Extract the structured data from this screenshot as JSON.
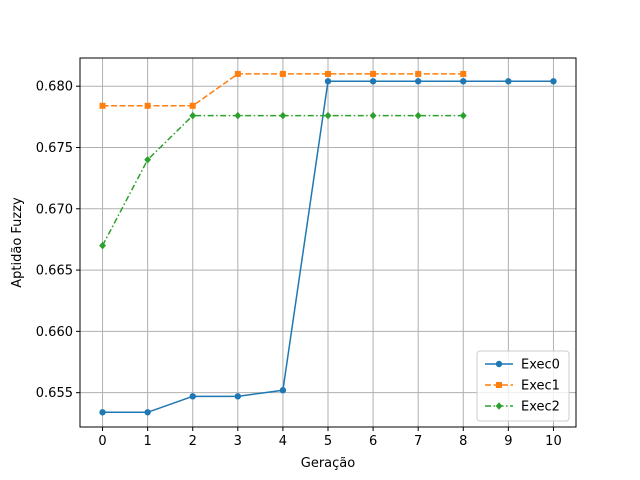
{
  "chart_data": {
    "type": "line",
    "title": "",
    "xlabel": "Geração",
    "ylabel": "Aptidão Fuzzy",
    "xlim": [
      -0.5,
      10.5
    ],
    "ylim": [
      0.6522,
      0.6823
    ],
    "x_ticks": [
      0,
      1,
      2,
      3,
      4,
      5,
      6,
      7,
      8,
      9,
      10
    ],
    "y_ticks": [
      0.655,
      0.66,
      0.665,
      0.67,
      0.675,
      0.68
    ],
    "y_tick_labels": [
      "0.655",
      "0.660",
      "0.665",
      "0.670",
      "0.675",
      "0.680"
    ],
    "grid": true,
    "legend_position": "lower-right",
    "series": [
      {
        "name": "Exec0",
        "color": "#1f77b4",
        "linestyle": "solid",
        "marker": "circle",
        "x": [
          0,
          1,
          2,
          3,
          4,
          5,
          6,
          7,
          8,
          9,
          10
        ],
        "values": [
          0.6534,
          0.6534,
          0.6547,
          0.6547,
          0.6552,
          0.6804,
          0.6804,
          0.6804,
          0.6804,
          0.6804,
          0.6804
        ]
      },
      {
        "name": "Exec1",
        "color": "#ff7f0e",
        "linestyle": "dashed",
        "marker": "square",
        "x": [
          0,
          1,
          2,
          3,
          4,
          5,
          6,
          7,
          8
        ],
        "values": [
          0.6784,
          0.6784,
          0.6784,
          0.681,
          0.681,
          0.681,
          0.681,
          0.681,
          0.681
        ]
      },
      {
        "name": "Exec2",
        "color": "#2ca02c",
        "linestyle": "dashdot",
        "marker": "diamond",
        "x": [
          0,
          1,
          2,
          3,
          4,
          5,
          6,
          7,
          8
        ],
        "values": [
          0.667,
          0.674,
          0.6776,
          0.6776,
          0.6776,
          0.6776,
          0.6776,
          0.6776,
          0.6776
        ]
      }
    ]
  }
}
